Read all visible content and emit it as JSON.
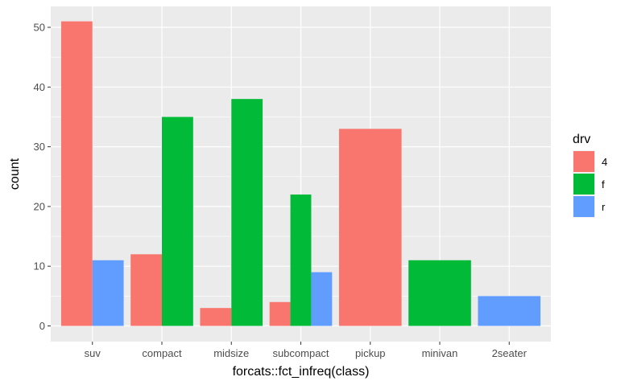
{
  "chart_data": {
    "type": "bar",
    "position": "dodge",
    "categories": [
      "suv",
      "compact",
      "midsize",
      "subcompact",
      "pickup",
      "minivan",
      "2seater"
    ],
    "xlabel": "forcats::fct_infreq(class)",
    "ylabel": "count",
    "ylim": [
      0,
      53
    ],
    "yticks": [
      0,
      10,
      20,
      30,
      40,
      50
    ],
    "grid": true,
    "legend": {
      "title": "drv",
      "placement": "right",
      "entries": [
        "4",
        "f",
        "r"
      ]
    },
    "bars": [
      {
        "category": "suv",
        "group": "4",
        "value": 51
      },
      {
        "category": "suv",
        "group": "r",
        "value": 11
      },
      {
        "category": "compact",
        "group": "4",
        "value": 12
      },
      {
        "category": "compact",
        "group": "f",
        "value": 35
      },
      {
        "category": "midsize",
        "group": "4",
        "value": 3
      },
      {
        "category": "midsize",
        "group": "f",
        "value": 38
      },
      {
        "category": "subcompact",
        "group": "4",
        "value": 4
      },
      {
        "category": "subcompact",
        "group": "f",
        "value": 22
      },
      {
        "category": "subcompact",
        "group": "r",
        "value": 9
      },
      {
        "category": "pickup",
        "group": "4",
        "value": 33
      },
      {
        "category": "minivan",
        "group": "f",
        "value": 11
      },
      {
        "category": "2seater",
        "group": "r",
        "value": 5
      }
    ],
    "colors": {
      "4": "#F8766D",
      "f": "#00BA38",
      "r": "#619CFF"
    },
    "panel_background": "#EBEBEB",
    "grid_color": "#FFFFFF"
  }
}
